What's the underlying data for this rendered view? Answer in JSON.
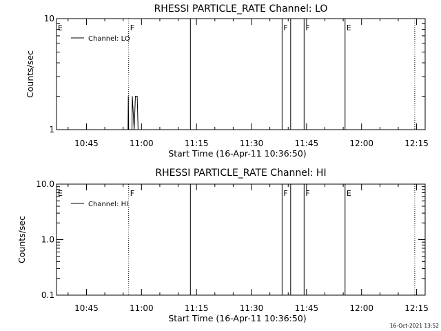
{
  "footer": {
    "timestamp": "16-Oct-2021 13:52"
  },
  "colors": {
    "foreground": "#000000",
    "background": "#ffffff"
  },
  "chart_data": [
    {
      "type": "line",
      "title": "RHESSI PARTICLE_RATE Channel: LO",
      "xlabel": "Start Time (16-Apr-11 10:36:50)",
      "ylabel": "Counts/sec",
      "y_scale": "log",
      "ylim": [
        1,
        10
      ],
      "y_ticks": [
        1,
        10
      ],
      "y_tick_labels": [
        "1",
        "10"
      ],
      "xlim": [
        "10:36:50",
        "12:17:20"
      ],
      "x_ticks": [
        "10:45",
        "11:00",
        "11:15",
        "11:30",
        "11:45",
        "12:00",
        "12:15"
      ],
      "grid": false,
      "legend": {
        "position": "top-left",
        "entries": [
          "Channel: LO"
        ]
      },
      "series": [
        {
          "name": "Channel: LO",
          "x": [
            "10:56:20",
            "10:56:25",
            "10:56:30",
            "10:56:50",
            "10:57:10",
            "10:57:25",
            "10:57:30",
            "10:58:00",
            "10:58:20",
            "10:58:35",
            "10:58:50",
            "10:59:05",
            "10:59:20",
            "10:59:50"
          ],
          "y": [
            1,
            2,
            1,
            1,
            1,
            1,
            2,
            1,
            2,
            2,
            2,
            1,
            1,
            1
          ]
        }
      ],
      "annotations": [
        {
          "time": "10:36:50",
          "style": "solid",
          "label": "E"
        },
        {
          "time": "10:56:30",
          "style": "dotted",
          "label": "F"
        },
        {
          "time": "11:13:20",
          "style": "solid",
          "label": ""
        },
        {
          "time": "11:38:20",
          "style": "solid",
          "label": "F"
        },
        {
          "time": "11:40:40",
          "style": "solid",
          "label": ""
        },
        {
          "time": "11:44:20",
          "style": "solid",
          "label": "F"
        },
        {
          "time": "11:55:30",
          "style": "solid",
          "label": "E"
        },
        {
          "time": "12:14:30",
          "style": "dotted",
          "label": ""
        }
      ]
    },
    {
      "type": "line",
      "title": "RHESSI PARTICLE_RATE Channel: HI",
      "xlabel": "Start Time (16-Apr-11 10:36:50)",
      "ylabel": "Counts/sec",
      "y_scale": "log",
      "ylim": [
        0.1,
        10
      ],
      "y_ticks": [
        0.1,
        1,
        10
      ],
      "y_tick_labels": [
        "0.1",
        "1.0",
        "10.0"
      ],
      "xlim": [
        "10:36:50",
        "12:17:20"
      ],
      "x_ticks": [
        "10:45",
        "11:00",
        "11:15",
        "11:30",
        "11:45",
        "12:00",
        "12:15"
      ],
      "grid": false,
      "legend": {
        "position": "top-left",
        "entries": [
          "Channel: HI"
        ]
      },
      "series": [
        {
          "name": "Channel: HI",
          "x": [],
          "y": []
        }
      ],
      "annotations": [
        {
          "time": "10:36:50",
          "style": "solid",
          "label": "E"
        },
        {
          "time": "10:56:30",
          "style": "dotted",
          "label": "F"
        },
        {
          "time": "11:13:20",
          "style": "solid",
          "label": ""
        },
        {
          "time": "11:38:20",
          "style": "solid",
          "label": "F"
        },
        {
          "time": "11:40:40",
          "style": "solid",
          "label": ""
        },
        {
          "time": "11:44:20",
          "style": "solid",
          "label": "F"
        },
        {
          "time": "11:55:30",
          "style": "solid",
          "label": "E"
        },
        {
          "time": "12:14:30",
          "style": "dotted",
          "label": ""
        }
      ]
    }
  ]
}
